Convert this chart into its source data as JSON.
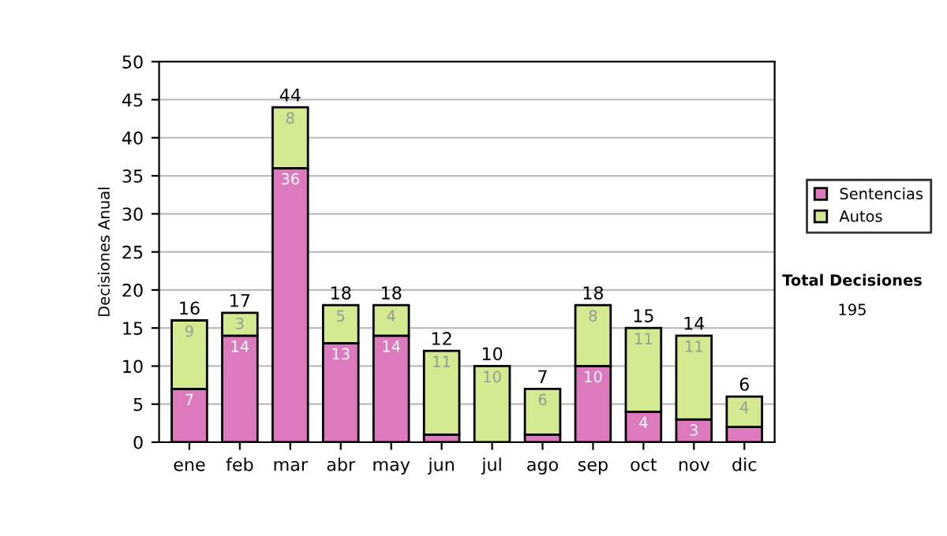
{
  "chart_data": {
    "type": "bar",
    "ylabel": "Decisiones Anual",
    "categories": [
      "ene",
      "feb",
      "mar",
      "abr",
      "may",
      "jun",
      "jul",
      "ago",
      "sep",
      "oct",
      "nov",
      "dic"
    ],
    "stacked": true,
    "series": [
      {
        "name": "Sentencias",
        "color": "#dd7abd",
        "values": [
          7,
          14,
          36,
          13,
          14,
          1,
          0,
          1,
          10,
          4,
          3,
          2
        ],
        "value_labels": [
          "7",
          "14",
          "36",
          "13",
          "14",
          null,
          null,
          null,
          "10",
          "4",
          "3",
          null
        ]
      },
      {
        "name": "Autos",
        "color": "#d4ea90",
        "values": [
          9,
          3,
          8,
          5,
          4,
          11,
          10,
          6,
          8,
          11,
          11,
          4
        ],
        "value_labels": [
          "9",
          "3",
          "8",
          "5",
          "4",
          "11",
          "10",
          "6",
          "8",
          "11",
          "11",
          "4"
        ]
      }
    ],
    "totals": [
      "16",
      "17",
      "44",
      "18",
      "18",
      "12",
      "10",
      "7",
      "18",
      "15",
      "14",
      "6"
    ],
    "ylim": [
      0,
      50
    ],
    "yticks": [
      0,
      5,
      10,
      15,
      20,
      25,
      30,
      35,
      40,
      45,
      50
    ],
    "grid": "y",
    "legend": "right",
    "annotations": [
      "Total Decisiones",
      "195"
    ]
  }
}
